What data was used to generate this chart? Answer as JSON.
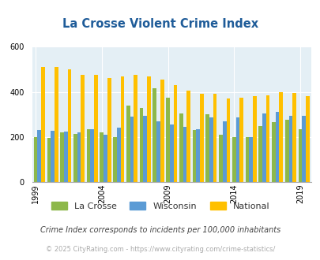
{
  "title": "La Crosse Violent Crime Index",
  "years": [
    1999,
    2000,
    2001,
    2002,
    2003,
    2004,
    2005,
    2006,
    2007,
    2008,
    2009,
    2010,
    2011,
    2012,
    2013,
    2014,
    2015,
    2016,
    2017,
    2018,
    2019
  ],
  "la_crosse": [
    200,
    195,
    220,
    215,
    235,
    220,
    200,
    340,
    330,
    415,
    375,
    305,
    230,
    300,
    210,
    200,
    200,
    250,
    265,
    275,
    235
  ],
  "wisconsin": [
    230,
    228,
    225,
    220,
    235,
    210,
    240,
    290,
    295,
    270,
    255,
    245,
    235,
    285,
    270,
    285,
    200,
    305,
    310,
    295,
    295
  ],
  "national": [
    510,
    510,
    500,
    475,
    475,
    463,
    470,
    475,
    470,
    455,
    430,
    405,
    390,
    390,
    370,
    375,
    380,
    385,
    400,
    395,
    380
  ],
  "la_crosse_color": "#8db84a",
  "wisconsin_color": "#5b9bd5",
  "national_color": "#ffc000",
  "bg_color": "#e4eff5",
  "title_color": "#1f5c99",
  "legend_labels": [
    "La Crosse",
    "Wisconsin",
    "National"
  ],
  "xlabel_ticks": [
    1999,
    2004,
    2009,
    2014,
    2019
  ],
  "ylim": [
    0,
    600
  ],
  "yticks": [
    0,
    200,
    400,
    600
  ],
  "subtitle": "Crime Index corresponds to incidents per 100,000 inhabitants",
  "footer": "© 2025 CityRating.com - https://www.cityrating.com/crime-statistics/"
}
